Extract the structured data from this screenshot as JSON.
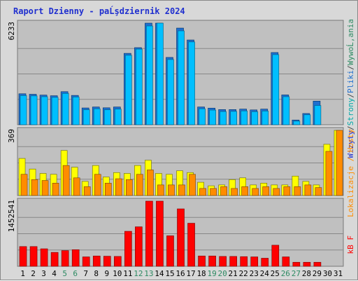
{
  "title": "Raport Dzienny -  paĹşdziernik 2024",
  "side_labels": {
    "top_parts": [
      {
        "text": "Wizyty",
        "color": "#1f2fcf"
      },
      {
        "text": "/",
        "color": "#444444"
      },
      {
        "text": "Strony",
        "color": "#00a8a8"
      },
      {
        "text": "/",
        "color": "#444444"
      },
      {
        "text": "Pliki",
        "color": "#1f6fcf"
      },
      {
        "text": "/",
        "color": "#444444"
      },
      {
        "text": "WywoĹ‚ania",
        "color": "#2c8a62"
      }
    ],
    "middle": "Lokalizacje / Hosty",
    "bottom": "kB F"
  },
  "colors": {
    "background": "#d8d8d8",
    "plot_bg": "#c0c0c0",
    "title": "#1f2fcf",
    "hits": "#2c8a62",
    "files": "#1f6fcf",
    "pages": "#00bfff",
    "sites": "#ffff00",
    "hosts": "#ff8c00",
    "kbytes": "#ff0000",
    "weekday": "#000000",
    "weekend": "#2c8a62"
  },
  "chart_data": [
    {
      "type": "bar",
      "title": "Raport Dzienny -  paĹşdziernik 2024",
      "max_label": "6233",
      "ylim": [
        0,
        6233
      ],
      "categories": [
        "1",
        "2",
        "3",
        "4",
        "5",
        "6",
        "7",
        "8",
        "9",
        "10",
        "11",
        "12",
        "13",
        "14",
        "15",
        "16",
        "17",
        "18",
        "19",
        "20",
        "21",
        "22",
        "23",
        "24",
        "25",
        "26",
        "27",
        "28",
        "29",
        "30",
        "31"
      ],
      "weekend_days": [
        5,
        6,
        12,
        13,
        19,
        20,
        26,
        27
      ],
      "series": [
        {
          "name": "Wizyty",
          "values": [
            1900,
            1870,
            1820,
            1780,
            2030,
            1800,
            1030,
            1090,
            1040,
            1090,
            4380,
            4730,
            6233,
            6233,
            4130,
            5930,
            5200,
            1090,
            1020,
            930,
            930,
            960,
            910,
            960,
            4430,
            1830,
            290,
            690,
            1450,
            0,
            0
          ]
        },
        {
          "name": "Strony",
          "values": [
            1790,
            1770,
            1720,
            1680,
            1920,
            1700,
            920,
            980,
            920,
            960,
            4260,
            4640,
            6060,
            6233,
            4000,
            5760,
            5080,
            980,
            900,
            810,
            820,
            850,
            800,
            840,
            4300,
            1720,
            220,
            610,
            1180,
            0,
            0
          ]
        },
        {
          "name": "Pliki",
          "values": [
            0,
            0,
            0,
            0,
            0,
            0,
            0,
            0,
            0,
            0,
            0,
            0,
            0,
            0,
            0,
            0,
            0,
            0,
            0,
            0,
            0,
            0,
            0,
            0,
            0,
            0,
            0,
            0,
            0,
            0,
            0
          ]
        },
        {
          "name": "WywoĹ‚ania",
          "values": [
            0,
            0,
            0,
            0,
            0,
            0,
            0,
            0,
            0,
            0,
            0,
            0,
            0,
            0,
            0,
            0,
            0,
            0,
            0,
            0,
            0,
            0,
            0,
            0,
            0,
            0,
            0,
            0,
            0,
            0,
            0
          ]
        }
      ]
    },
    {
      "type": "bar",
      "max_label": "369",
      "ylim": [
        0,
        369
      ],
      "categories": [
        "1",
        "2",
        "3",
        "4",
        "5",
        "6",
        "7",
        "8",
        "9",
        "10",
        "11",
        "12",
        "13",
        "14",
        "15",
        "16",
        "17",
        "18",
        "19",
        "20",
        "21",
        "22",
        "23",
        "24",
        "25",
        "26",
        "27",
        "28",
        "29",
        "30",
        "31"
      ],
      "series": [
        {
          "name": "Lokalizacje",
          "values": [
            210,
            150,
            125,
            120,
            255,
            160,
            80,
            170,
            105,
            130,
            125,
            170,
            200,
            125,
            120,
            140,
            130,
            75,
            55,
            60,
            90,
            100,
            60,
            70,
            60,
            60,
            110,
            80,
            60,
            290,
            369
          ]
        },
        {
          "name": "Hosty",
          "values": [
            120,
            90,
            85,
            70,
            170,
            100,
            50,
            120,
            70,
            95,
            90,
            120,
            145,
            60,
            60,
            60,
            120,
            40,
            40,
            50,
            40,
            50,
            40,
            50,
            40,
            50,
            50,
            60,
            45,
            250,
            369
          ]
        }
      ]
    },
    {
      "type": "bar",
      "max_label": "1452541",
      "ylim": [
        0,
        1452541
      ],
      "categories": [
        "1",
        "2",
        "3",
        "4",
        "5",
        "6",
        "7",
        "8",
        "9",
        "10",
        "11",
        "12",
        "13",
        "14",
        "15",
        "16",
        "17",
        "18",
        "19",
        "20",
        "21",
        "22",
        "23",
        "24",
        "25",
        "26",
        "27",
        "28",
        "29",
        "30",
        "31"
      ],
      "series": [
        {
          "name": "kB F",
          "values": [
            440000,
            440000,
            390000,
            310000,
            350000,
            370000,
            210000,
            230000,
            225000,
            220000,
            780000,
            880000,
            1452541,
            1452541,
            680000,
            1280000,
            960000,
            230000,
            230000,
            220000,
            220000,
            215000,
            210000,
            180000,
            470000,
            210000,
            90000,
            90000,
            90000,
            0,
            0
          ]
        }
      ]
    }
  ]
}
